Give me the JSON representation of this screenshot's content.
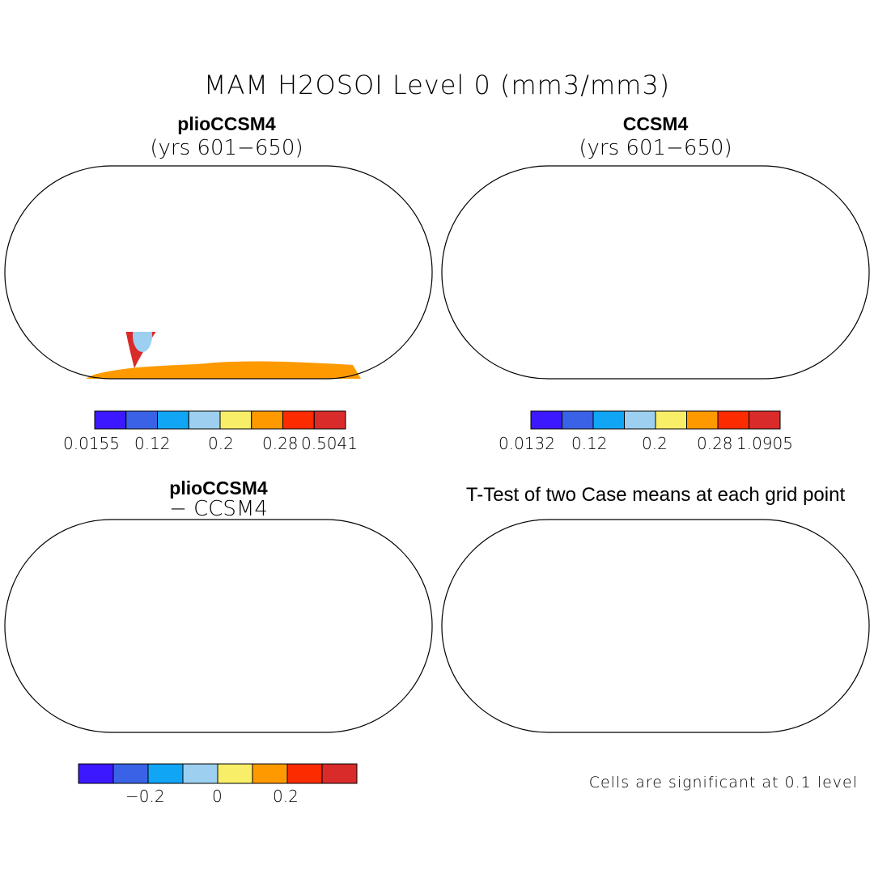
{
  "figure": {
    "title": "MAM H2OSOI Level 0 (mm3/mm3)",
    "colors": [
      "#3b18ff",
      "#3a62e6",
      "#11a5f5",
      "#9ccff0",
      "#f8ee68",
      "#fe9a00",
      "#fd2b00",
      "#d92b2a"
    ]
  },
  "panels": [
    {
      "title": "plioCCSM4",
      "subtitle": "(yrs 601−650)",
      "colorbar": {
        "labels": [
          "0.0155",
          "0.12",
          "0.2",
          "0.28",
          "0.5041"
        ]
      }
    },
    {
      "title": "CCSM4",
      "subtitle": "(yrs 601−650)",
      "colorbar": {
        "labels": [
          "0.0132",
          "0.12",
          "0.2",
          "0.28",
          "1.0905"
        ]
      }
    },
    {
      "title": "plioCCSM4",
      "subtitle": "− CCSM4",
      "colorbar": {
        "labels": [
          "−0.2",
          "0",
          "0.2"
        ]
      }
    },
    {
      "title": "T-Test of two Case means at each grid point",
      "note": "Cells are significant at 0.1 level"
    }
  ]
}
